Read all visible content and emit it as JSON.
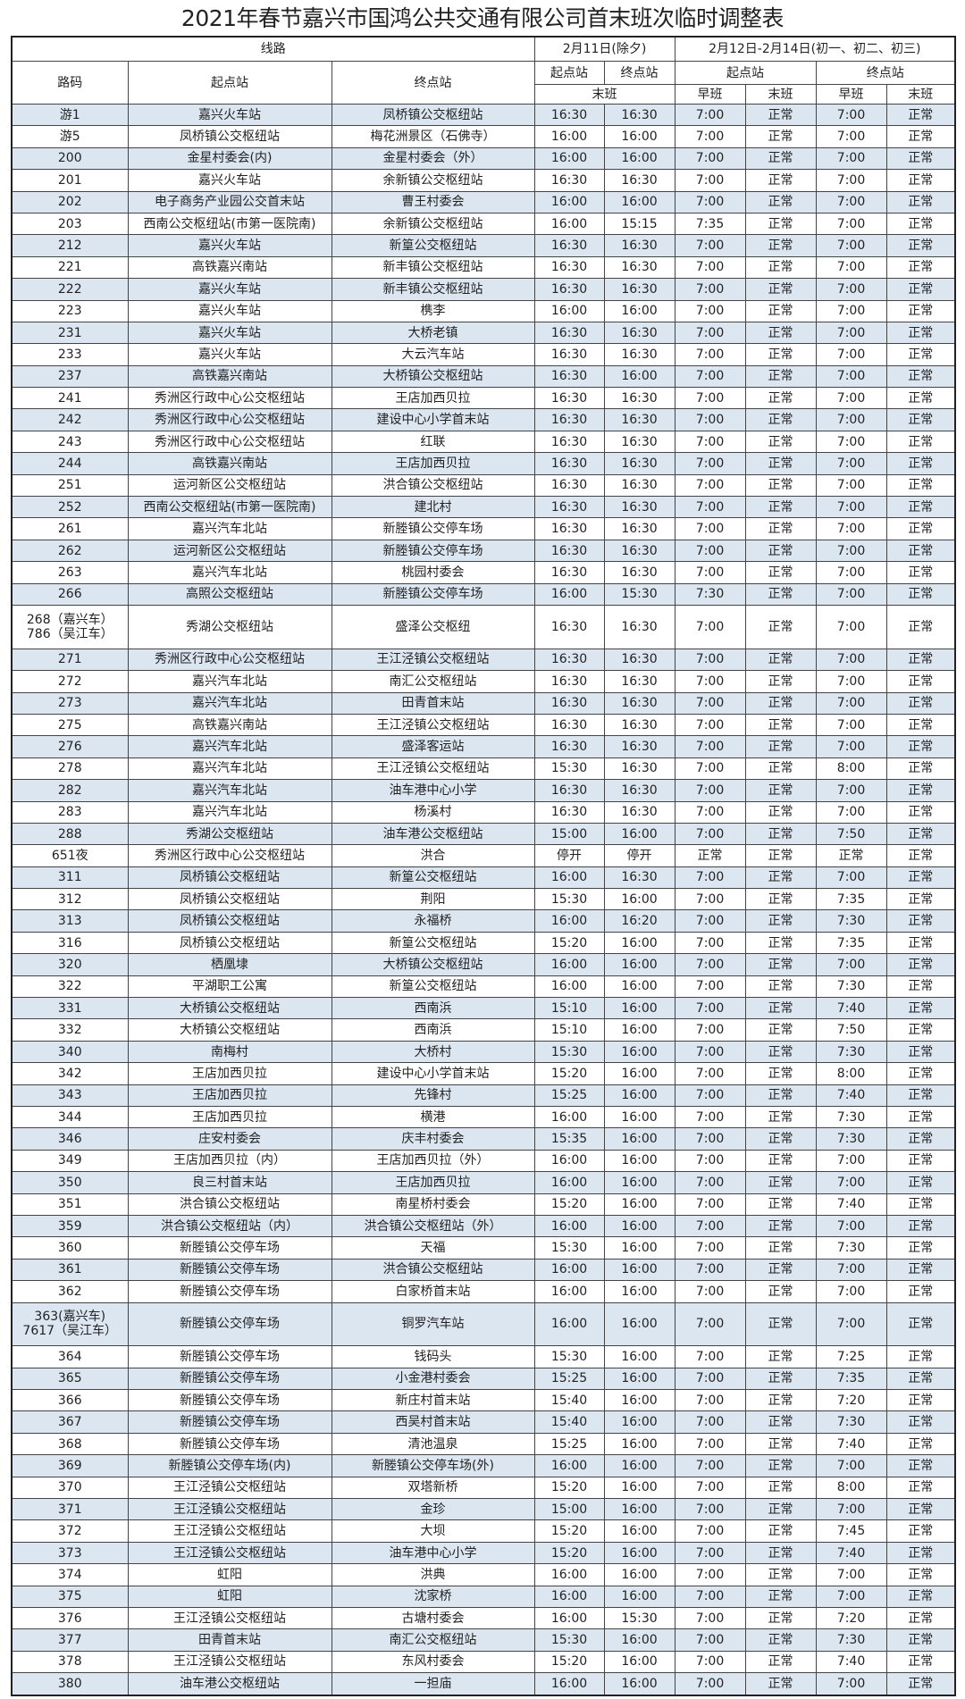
{
  "title": "2021年春节嘉兴市国鸿公共交通有限公司首末班次临时调整表",
  "colors": {
    "stripe": "#dce6f1",
    "border": "#444444"
  },
  "header": {
    "line": "线路",
    "day1": "2月11日(除夕)",
    "day2": "2月12日-2月14日(初一、初二、初三)",
    "route_code": "路码",
    "start_station": "起点站",
    "end_station": "终点站",
    "day1_start": "起点站",
    "day1_end": "终点站",
    "day2_start": "起点站",
    "day2_end": "终点站",
    "last_bus": "末班",
    "day2_start_early": "早班",
    "day2_start_last": "末班",
    "day2_end_early": "早班",
    "day2_end_last": "末班"
  },
  "rows": [
    [
      "游1",
      "嘉兴火车站",
      "凤桥镇公交枢纽站",
      "16:30",
      "16:30",
      "7:00",
      "正常",
      "7:00",
      "正常"
    ],
    [
      "游5",
      "凤桥镇公交枢纽站",
      "梅花洲景区（石佛寺）",
      "16:00",
      "16:00",
      "7:00",
      "正常",
      "7:00",
      "正常"
    ],
    [
      "200",
      "金星村委会(内)",
      "金星村委会（外）",
      "16:00",
      "16:00",
      "7:00",
      "正常",
      "7:00",
      "正常"
    ],
    [
      "201",
      "嘉兴火车站",
      "余新镇公交枢纽站",
      "16:30",
      "16:30",
      "7:00",
      "正常",
      "7:00",
      "正常"
    ],
    [
      "202",
      "电子商务产业园公交首末站",
      "曹王村委会",
      "16:00",
      "16:00",
      "7:00",
      "正常",
      "7:00",
      "正常"
    ],
    [
      "203",
      "西南公交枢纽站(市第一医院南)",
      "余新镇公交枢纽站",
      "16:00",
      "15:15",
      "7:35",
      "正常",
      "7:00",
      "正常"
    ],
    [
      "212",
      "嘉兴火车站",
      "新篁公交枢纽站",
      "16:30",
      "16:30",
      "7:00",
      "正常",
      "7:00",
      "正常"
    ],
    [
      "221",
      "高铁嘉兴南站",
      "新丰镇公交枢纽站",
      "16:30",
      "16:30",
      "7:00",
      "正常",
      "7:00",
      "正常"
    ],
    [
      "222",
      "嘉兴火车站",
      "新丰镇公交枢纽站",
      "16:30",
      "16:30",
      "7:00",
      "正常",
      "7:00",
      "正常"
    ],
    [
      "223",
      "嘉兴火车站",
      "槜李",
      "16:00",
      "16:00",
      "7:00",
      "正常",
      "7:00",
      "正常"
    ],
    [
      "231",
      "嘉兴火车站",
      "大桥老镇",
      "16:30",
      "16:30",
      "7:00",
      "正常",
      "7:00",
      "正常"
    ],
    [
      "233",
      "嘉兴火车站",
      "大云汽车站",
      "16:30",
      "16:30",
      "7:00",
      "正常",
      "7:00",
      "正常"
    ],
    [
      "237",
      "高铁嘉兴南站",
      "大桥镇公交枢纽站",
      "16:30",
      "16:00",
      "7:00",
      "正常",
      "7:00",
      "正常"
    ],
    [
      "241",
      "秀洲区行政中心公交枢纽站",
      "王店加西贝拉",
      "16:30",
      "16:30",
      "7:00",
      "正常",
      "7:00",
      "正常"
    ],
    [
      "242",
      "秀洲区行政中心公交枢纽站",
      "建设中心小学首末站",
      "16:30",
      "16:30",
      "7:00",
      "正常",
      "7:00",
      "正常"
    ],
    [
      "243",
      "秀洲区行政中心公交枢纽站",
      "红联",
      "16:30",
      "16:30",
      "7:00",
      "正常",
      "7:00",
      "正常"
    ],
    [
      "244",
      "高铁嘉兴南站",
      "王店加西贝拉",
      "16:30",
      "16:30",
      "7:00",
      "正常",
      "7:00",
      "正常"
    ],
    [
      "251",
      "运河新区公交枢纽站",
      "洪合镇公交枢纽站",
      "16:30",
      "16:30",
      "7:00",
      "正常",
      "7:00",
      "正常"
    ],
    [
      "252",
      "西南公交枢纽站(市第一医院南)",
      "建北村",
      "16:30",
      "16:30",
      "7:00",
      "正常",
      "7:00",
      "正常"
    ],
    [
      "261",
      "嘉兴汽车北站",
      "新塍镇公交停车场",
      "16:30",
      "16:30",
      "7:00",
      "正常",
      "7:00",
      "正常"
    ],
    [
      "262",
      "运河新区公交枢纽站",
      "新塍镇公交停车场",
      "16:30",
      "16:30",
      "7:00",
      "正常",
      "7:00",
      "正常"
    ],
    [
      "263",
      "嘉兴汽车北站",
      "桃园村委会",
      "16:30",
      "16:30",
      "7:00",
      "正常",
      "7:00",
      "正常"
    ],
    [
      "266",
      "高照公交枢纽站",
      "新塍镇公交停车场",
      "16:00",
      "15:30",
      "7:30",
      "正常",
      "7:00",
      "正常"
    ],
    [
      "268（嘉兴车）\n786（吴江车）",
      "秀湖公交枢纽站",
      "盛泽公交枢纽",
      "16:30",
      "16:30",
      "7:00",
      "正常",
      "7:00",
      "正常"
    ],
    [
      "271",
      "秀洲区行政中心公交枢纽站",
      "王江泾镇公交枢纽站",
      "16:30",
      "16:30",
      "7:00",
      "正常",
      "7:00",
      "正常"
    ],
    [
      "272",
      "嘉兴汽车北站",
      "南汇公交枢纽站",
      "16:30",
      "16:30",
      "7:00",
      "正常",
      "7:00",
      "正常"
    ],
    [
      "273",
      "嘉兴汽车北站",
      "田青首末站",
      "16:30",
      "16:30",
      "7:00",
      "正常",
      "7:00",
      "正常"
    ],
    [
      "275",
      "高铁嘉兴南站",
      "王江泾镇公交枢纽站",
      "16:30",
      "16:30",
      "7:00",
      "正常",
      "7:00",
      "正常"
    ],
    [
      "276",
      "嘉兴汽车北站",
      "盛泽客运站",
      "16:30",
      "16:30",
      "7:00",
      "正常",
      "7:00",
      "正常"
    ],
    [
      "278",
      "嘉兴汽车北站",
      "王江泾镇公交枢纽站",
      "15:30",
      "16:30",
      "7:00",
      "正常",
      "8:00",
      "正常"
    ],
    [
      "282",
      "嘉兴汽车北站",
      "油车港中心小学",
      "16:30",
      "16:30",
      "7:00",
      "正常",
      "7:00",
      "正常"
    ],
    [
      "283",
      "嘉兴汽车北站",
      "杨溪村",
      "16:30",
      "16:30",
      "7:00",
      "正常",
      "7:00",
      "正常"
    ],
    [
      "288",
      "秀湖公交枢纽站",
      "油车港公交枢纽站",
      "15:00",
      "16:00",
      "7:00",
      "正常",
      "7:50",
      "正常"
    ],
    [
      "651夜",
      "秀洲区行政中心公交枢纽站",
      "洪合",
      "停开",
      "停开",
      "正常",
      "正常",
      "正常",
      "正常"
    ],
    [
      "311",
      "凤桥镇公交枢纽站",
      "新篁公交枢纽站",
      "16:00",
      "16:30",
      "7:00",
      "正常",
      "7:00",
      "正常"
    ],
    [
      "312",
      "凤桥镇公交枢纽站",
      "荆阳",
      "15:30",
      "16:00",
      "7:00",
      "正常",
      "7:35",
      "正常"
    ],
    [
      "313",
      "凤桥镇公交枢纽站",
      "永福桥",
      "16:00",
      "16:20",
      "7:00",
      "正常",
      "7:30",
      "正常"
    ],
    [
      "316",
      "凤桥镇公交枢纽站",
      "新篁公交枢纽站",
      "15:20",
      "16:00",
      "7:00",
      "正常",
      "7:35",
      "正常"
    ],
    [
      "320",
      "栖凰埭",
      "大桥镇公交枢纽站",
      "16:00",
      "16:00",
      "7:00",
      "正常",
      "7:00",
      "正常"
    ],
    [
      "322",
      "平湖职工公寓",
      "新篁公交枢纽站",
      "16:00",
      "16:00",
      "7:00",
      "正常",
      "7:30",
      "正常"
    ],
    [
      "331",
      "大桥镇公交枢纽站",
      "西南浜",
      "15:10",
      "16:00",
      "7:00",
      "正常",
      "7:40",
      "正常"
    ],
    [
      "332",
      "大桥镇公交枢纽站",
      "西南浜",
      "15:10",
      "16:00",
      "7:00",
      "正常",
      "7:50",
      "正常"
    ],
    [
      "340",
      "南梅村",
      "大桥村",
      "15:30",
      "16:00",
      "7:00",
      "正常",
      "7:30",
      "正常"
    ],
    [
      "342",
      "王店加西贝拉",
      "建设中心小学首末站",
      "15:20",
      "16:00",
      "7:00",
      "正常",
      "8:00",
      "正常"
    ],
    [
      "343",
      "王店加西贝拉",
      "先锋村",
      "15:25",
      "16:00",
      "7:00",
      "正常",
      "7:40",
      "正常"
    ],
    [
      "344",
      "王店加西贝拉",
      "横港",
      "16:00",
      "16:00",
      "7:00",
      "正常",
      "7:30",
      "正常"
    ],
    [
      "346",
      "庄安村委会",
      "庆丰村委会",
      "15:35",
      "16:00",
      "7:00",
      "正常",
      "7:30",
      "正常"
    ],
    [
      "349",
      "王店加西贝拉（内）",
      "王店加西贝拉（外）",
      "16:00",
      "16:00",
      "7:00",
      "正常",
      "7:00",
      "正常"
    ],
    [
      "350",
      "良三村首末站",
      "王店加西贝拉",
      "16:00",
      "16:00",
      "7:00",
      "正常",
      "7:00",
      "正常"
    ],
    [
      "351",
      "洪合镇公交枢纽站",
      "南星桥村委会",
      "15:20",
      "16:00",
      "7:00",
      "正常",
      "7:40",
      "正常"
    ],
    [
      "359",
      "洪合镇公交枢纽站（内）",
      "洪合镇公交枢纽站（外）",
      "16:00",
      "16:00",
      "7:00",
      "正常",
      "7:00",
      "正常"
    ],
    [
      "360",
      "新塍镇公交停车场",
      "天福",
      "15:30",
      "16:00",
      "7:00",
      "正常",
      "7:30",
      "正常"
    ],
    [
      "361",
      "新塍镇公交停车场",
      "洪合镇公交枢纽站",
      "16:00",
      "16:00",
      "7:00",
      "正常",
      "7:00",
      "正常"
    ],
    [
      "362",
      "新塍镇公交停车场",
      "白家桥首末站",
      "16:00",
      "16:00",
      "7:00",
      "正常",
      "7:00",
      "正常"
    ],
    [
      "363(嘉兴车)\n7617（吴江车）",
      "新塍镇公交停车场",
      "铜罗汽车站",
      "16:00",
      "16:00",
      "7:00",
      "正常",
      "7:00",
      "正常"
    ],
    [
      "364",
      "新塍镇公交停车场",
      "钱码头",
      "15:30",
      "16:00",
      "7:00",
      "正常",
      "7:25",
      "正常"
    ],
    [
      "365",
      "新塍镇公交停车场",
      "小金港村委会",
      "15:25",
      "16:00",
      "7:00",
      "正常",
      "7:35",
      "正常"
    ],
    [
      "366",
      "新塍镇公交停车场",
      "新庄村首末站",
      "15:40",
      "16:00",
      "7:00",
      "正常",
      "7:20",
      "正常"
    ],
    [
      "367",
      "新塍镇公交停车场",
      "西吴村首末站",
      "15:40",
      "16:00",
      "7:00",
      "正常",
      "7:30",
      "正常"
    ],
    [
      "368",
      "新塍镇公交停车场",
      "清池温泉",
      "15:25",
      "16:00",
      "7:00",
      "正常",
      "7:40",
      "正常"
    ],
    [
      "369",
      "新塍镇公交停车场(内)",
      "新塍镇公交停车场(外)",
      "16:00",
      "16:00",
      "7:00",
      "正常",
      "7:00",
      "正常"
    ],
    [
      "370",
      "王江泾镇公交枢纽站",
      "双塔新桥",
      "15:20",
      "16:00",
      "7:00",
      "正常",
      "8:00",
      "正常"
    ],
    [
      "371",
      "王江泾镇公交枢纽站",
      "金珍",
      "15:00",
      "16:00",
      "7:00",
      "正常",
      "7:00",
      "正常"
    ],
    [
      "372",
      "王江泾镇公交枢纽站",
      "大坝",
      "15:20",
      "16:00",
      "7:00",
      "正常",
      "7:45",
      "正常"
    ],
    [
      "373",
      "王江泾镇公交枢纽站",
      "油车港中心小学",
      "15:20",
      "16:00",
      "7:00",
      "正常",
      "7:40",
      "正常"
    ],
    [
      "374",
      "虹阳",
      "洪典",
      "16:00",
      "16:00",
      "7:00",
      "正常",
      "7:00",
      "正常"
    ],
    [
      "375",
      "虹阳",
      "沈家桥",
      "16:00",
      "16:00",
      "7:00",
      "正常",
      "7:00",
      "正常"
    ],
    [
      "376",
      "王江泾镇公交枢纽站",
      "古塘村委会",
      "16:00",
      "15:30",
      "7:00",
      "正常",
      "7:20",
      "正常"
    ],
    [
      "377",
      "田青首末站",
      "南汇公交枢纽站",
      "15:30",
      "16:00",
      "7:00",
      "正常",
      "7:30",
      "正常"
    ],
    [
      "378",
      "王江泾镇公交枢纽站",
      "东风村委会",
      "15:20",
      "16:00",
      "7:00",
      "正常",
      "7:40",
      "正常"
    ],
    [
      "380",
      "油车港公交枢纽站",
      "一担庙",
      "16:00",
      "16:00",
      "7:00",
      "正常",
      "7:00",
      "正常"
    ]
  ]
}
